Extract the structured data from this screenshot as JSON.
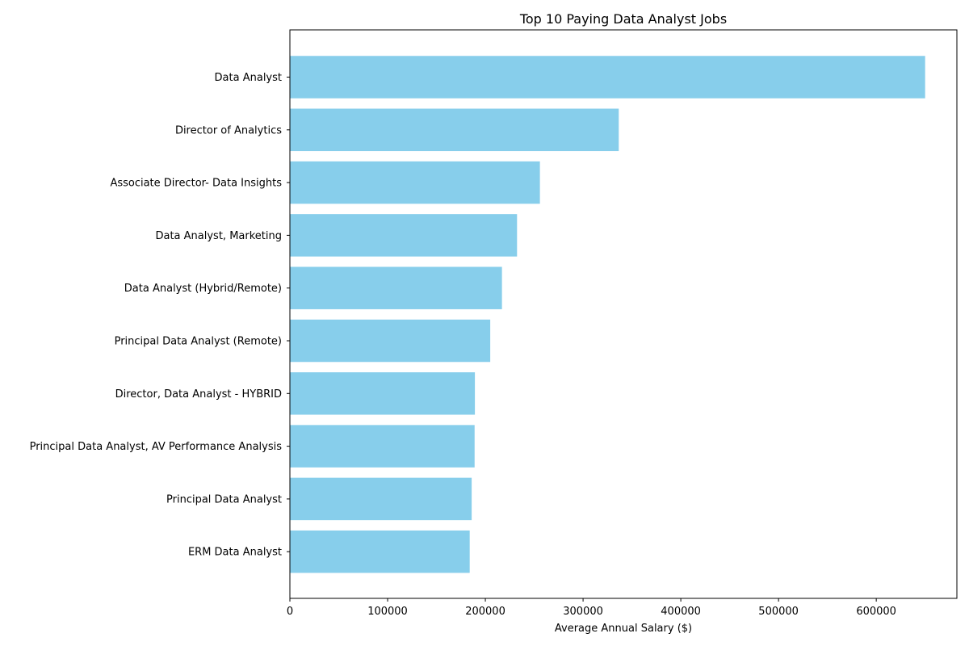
{
  "chart_data": {
    "type": "bar",
    "orientation": "horizontal",
    "title": "Top 10 Paying Data Analyst Jobs",
    "xlabel": "Average Annual Salary ($)",
    "ylabel": "",
    "categories": [
      "Data Analyst",
      "Director of Analytics",
      "Associate Director- Data Insights",
      "Data Analyst, Marketing",
      "Data Analyst (Hybrid/Remote)",
      "Principal Data Analyst (Remote)",
      "Director, Data Analyst - HYBRID",
      "Principal Data Analyst, AV Performance Analysis",
      "Principal Data Analyst",
      "ERM Data Analyst"
    ],
    "values": [
      650000,
      336500,
      255829.5,
      232423,
      217000,
      205000,
      189309,
      189000,
      186000,
      184000
    ],
    "xlim": [
      0,
      682500
    ],
    "xticks": [
      0,
      100000,
      200000,
      300000,
      400000,
      500000,
      600000
    ],
    "xtick_labels": [
      "0",
      "100000",
      "200000",
      "300000",
      "400000",
      "500000",
      "600000"
    ],
    "bar_color": "#87CEEB",
    "grid": false,
    "legend": "none"
  }
}
